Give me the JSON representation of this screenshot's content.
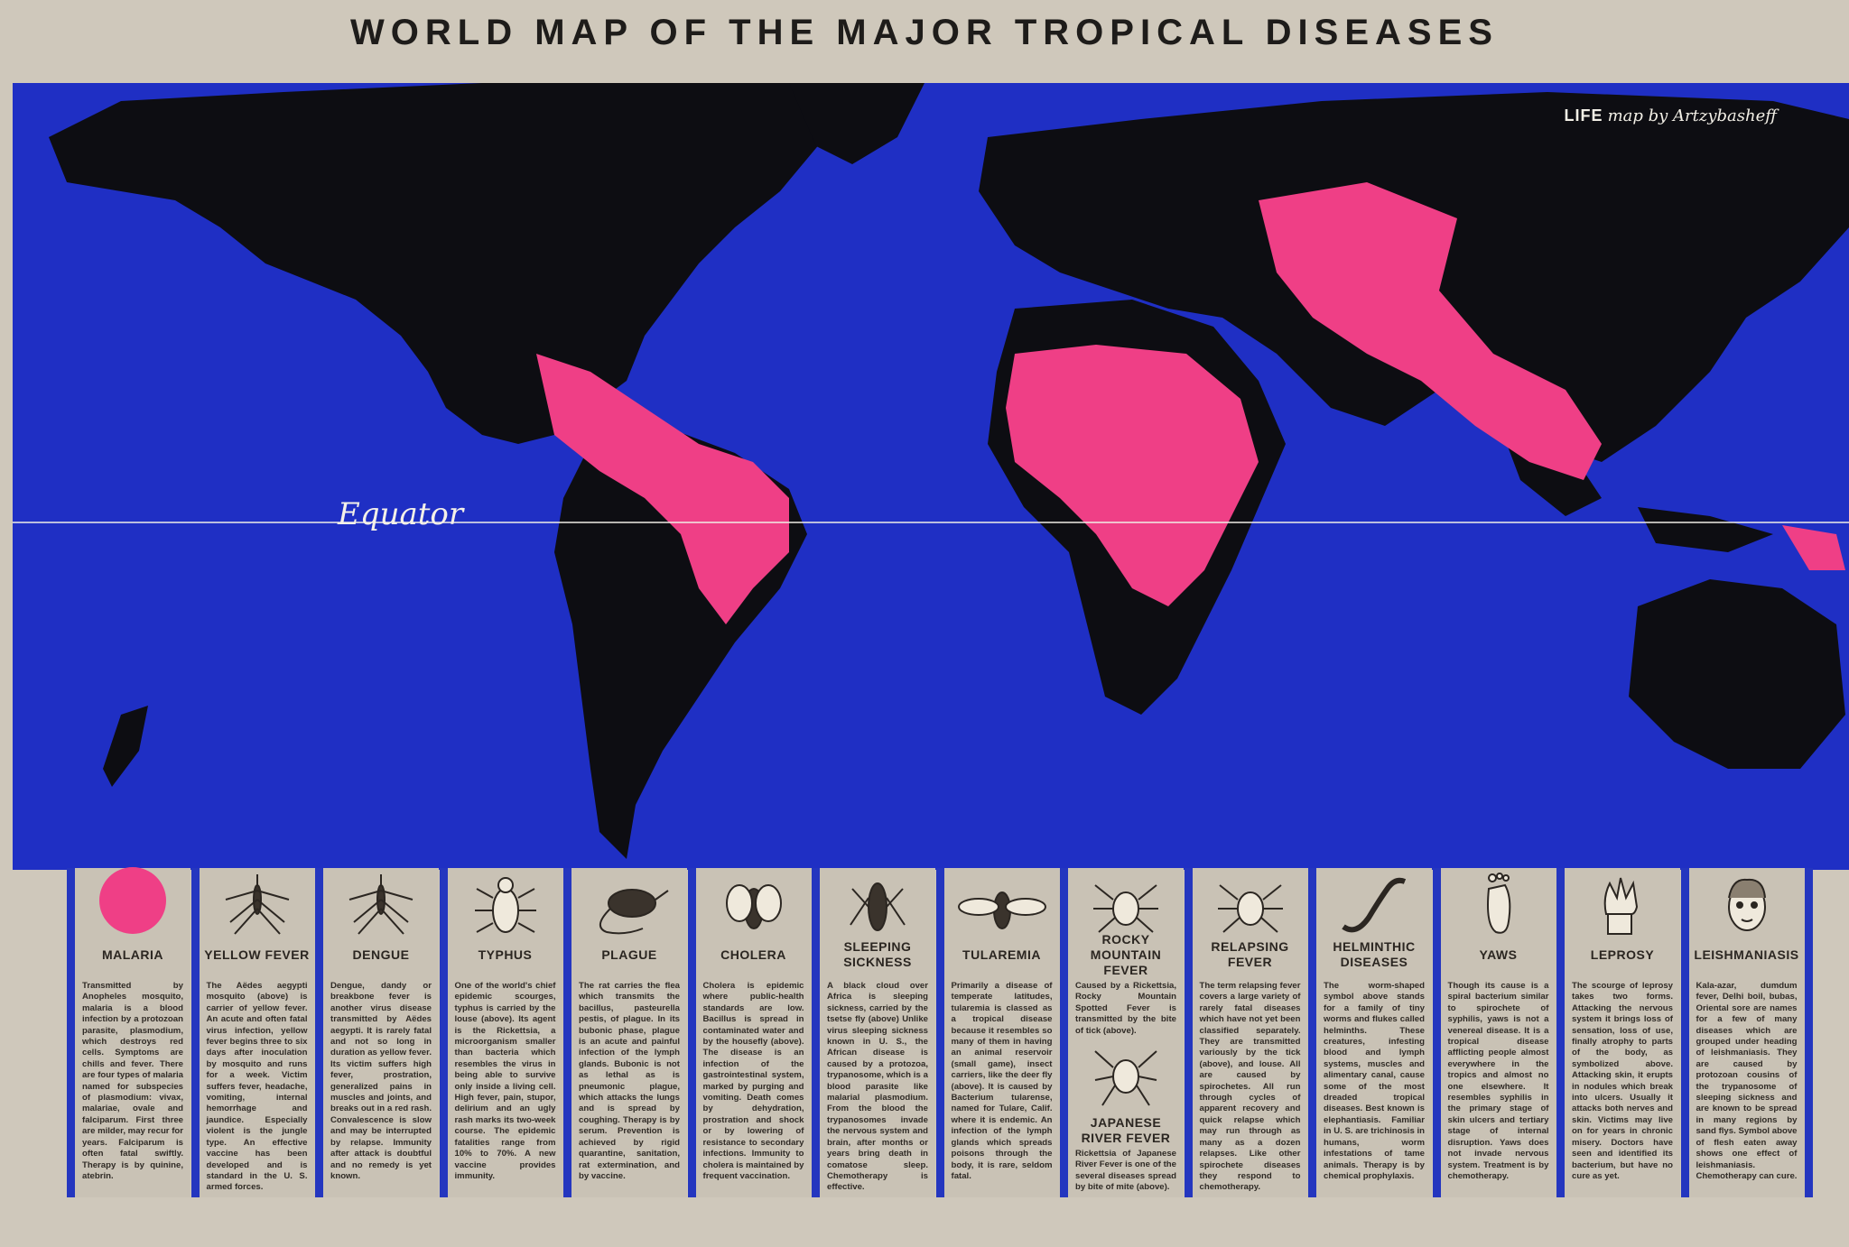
{
  "title": "WORLD MAP OF THE MAJOR TROPICAL DISEASES",
  "credit": {
    "brand": "LIFE",
    "text": "map by Artzybasheff"
  },
  "equator_label": "Equator",
  "colors": {
    "ocean": "#1f2fc4",
    "land": "#0d0d12",
    "disease_area": "#ef3f86",
    "paper": "#cfc8bb"
  },
  "legend": [
    {
      "name": "MALARIA",
      "icon": "pink-dot-icon",
      "text": "Transmitted by Anopheles mosquito, malaria is a blood infection by a protozoan parasite, plasmodium, which destroys red cells. Symptoms are chills and fever. There are four types of malaria named for subspecies of plasmodium: vivax, malariae, ovale and falciparum. First three are milder, may recur for years. Falciparum is often fatal swiftly. Therapy is by quinine, atebrin."
    },
    {
      "name": "YELLOW FEVER",
      "icon": "mosquito-icon",
      "text": "The Aëdes aegypti mosquito (above) is carrier of yellow fever. An acute and often fatal virus infection, yellow fever begins three to six days after inoculation by mosquito and runs for a week. Victim suffers fever, headache, vomiting, internal hemorrhage and jaundice. Especially violent is the jungle type. An effective vaccine has been developed and is standard in the U. S. armed forces."
    },
    {
      "name": "DENGUE",
      "icon": "mosquito-icon",
      "text": "Dengue, dandy or breakbone fever is another virus disease transmitted by Aëdes aegypti. It is rarely fatal and not so long in duration as yellow fever. Its victim suffers high fever, prostration, generalized pains in muscles and joints, and breaks out in a red rash. Convalescence is slow and may be interrupted by relapse. Immunity after attack is doubtful and no remedy is yet known."
    },
    {
      "name": "TYPHUS",
      "icon": "louse-icon",
      "text": "One of the world's chief epidemic scourges, typhus is carried by the louse (above). Its agent is the Rickettsia, a microorganism smaller than bacteria which resembles the virus in being able to survive only inside a living cell. High fever, pain, stupor, delirium and an ugly rash marks its two-week course. The epidemic fatalities range from 10% to 70%. A new vaccine provides immunity."
    },
    {
      "name": "PLAGUE",
      "icon": "rat-icon",
      "text": "The rat carries the flea which transmits the bacillus, pasteurella pestis, of plague. In its bubonic phase, plague is an acute and painful infection of the lymph glands. Bubonic is not as lethal as is pneumonic plague, which attacks the lungs and is spread by coughing. Therapy is by serum. Prevention is achieved by rigid quarantine, sanitation, rat extermination, and by vaccine."
    },
    {
      "name": "CHOLERA",
      "icon": "housefly-icon",
      "text": "Cholera is epidemic where public-health standards are low. Bacillus is spread in contaminated water and by the housefly (above). The disease is an infection of the gastrointestinal system, marked by purging and vomiting. Death comes by dehydration, prostration and shock or by lowering of resistance to secondary infections. Immunity to cholera is maintained by frequent vaccination."
    },
    {
      "name": "SLEEPING SICKNESS",
      "icon": "tsetse-fly-icon",
      "text": "A black cloud over Africa is sleeping sickness, carried by the tsetse fly (above) Unlike virus sleeping sickness known in U. S., the African disease is caused by a protozoa, trypanosome, which is a blood parasite like malarial plasmodium. From the blood the trypanosomes invade the nervous system and brain, after months or years bring death in comatose sleep. Chemotherapy is effective."
    },
    {
      "name": "TULAREMIA",
      "icon": "deer-fly-icon",
      "text": "Primarily a disease of temperate latitudes, tularemia is classed as a tropical disease because it resembles so many of them in having an animal reservoir (small game), insect carriers, like the deer fly (above). It is caused by Bacterium tularense, named for Tulare, Calif. where it is endemic. An infection of the lymph glands which spreads poisons through the body, it is rare, seldom fatal."
    },
    {
      "name": "ROCKY MOUNTAIN FEVER",
      "icon": "tick-icon",
      "text": "Caused by a Rickettsia, Rocky Mountain Spotted Fever is transmitted by the bite of tick (above).",
      "sub": {
        "name": "JAPANESE RIVER FEVER",
        "icon": "mite-icon",
        "text": "Rickettsia of Japanese River Fever is one of the several diseases spread by bite of mite (above)."
      }
    },
    {
      "name": "RELAPSING FEVER",
      "icon": "tick-icon",
      "text": "The term relapsing fever covers a large variety of rarely fatal diseases which have not yet been classified separately. They are transmitted variously by the tick (above), and louse. All are caused by spirochetes. All run through cycles of apparent recovery and quick relapse which may run through as many as a dozen relapses. Like other spirochete diseases they respond to chemotherapy."
    },
    {
      "name": "HELMINTHIC DISEASES",
      "icon": "worm-icon",
      "text": "The worm-shaped symbol above stands for a family of tiny worms and flukes called helminths. These creatures, infesting blood and lymph systems, muscles and alimentary canal, cause some of the most dreaded tropical diseases. Best known is elephantiasis. Familiar in U. S. are trichinosis in humans, worm infestations of tame animals. Therapy is by chemical prophylaxis."
    },
    {
      "name": "YAWS",
      "icon": "foot-icon",
      "text": "Though its cause is a spiral bacterium similar to spirochete of syphilis, yaws is not a venereal disease. It is a tropical disease afflicting people almost everywhere in the tropics and almost no one elsewhere. It resembles syphilis in the primary stage of skin ulcers and tertiary stage of internal disruption. Yaws does not invade nervous system. Treatment is by chemotherapy."
    },
    {
      "name": "LEPROSY",
      "icon": "hand-icon",
      "text": "The scourge of leprosy takes two forms. Attacking the nervous system it brings loss of sensation, loss of use, finally atrophy to parts of the body, as symbolized above. Attacking skin, it erupts in nodules which break into ulcers. Usually it attacks both nerves and skin. Victims may live on for years in chronic misery. Doctors have seen and identified its bacterium, but have no cure as yet."
    },
    {
      "name": "LEISHMANIASIS",
      "icon": "face-icon",
      "text": "Kala-azar, dumdum fever, Delhi boil, bubas, Oriental sore are names for a few of many diseases which are grouped under heading of leishmaniasis. They are caused by protozoan cousins of the trypanosome of sleeping sickness and are known to be spread in many regions by sand flys. Symbol above of flesh eaten away shows one effect of leishmaniasis. Chemotherapy can cure."
    }
  ]
}
